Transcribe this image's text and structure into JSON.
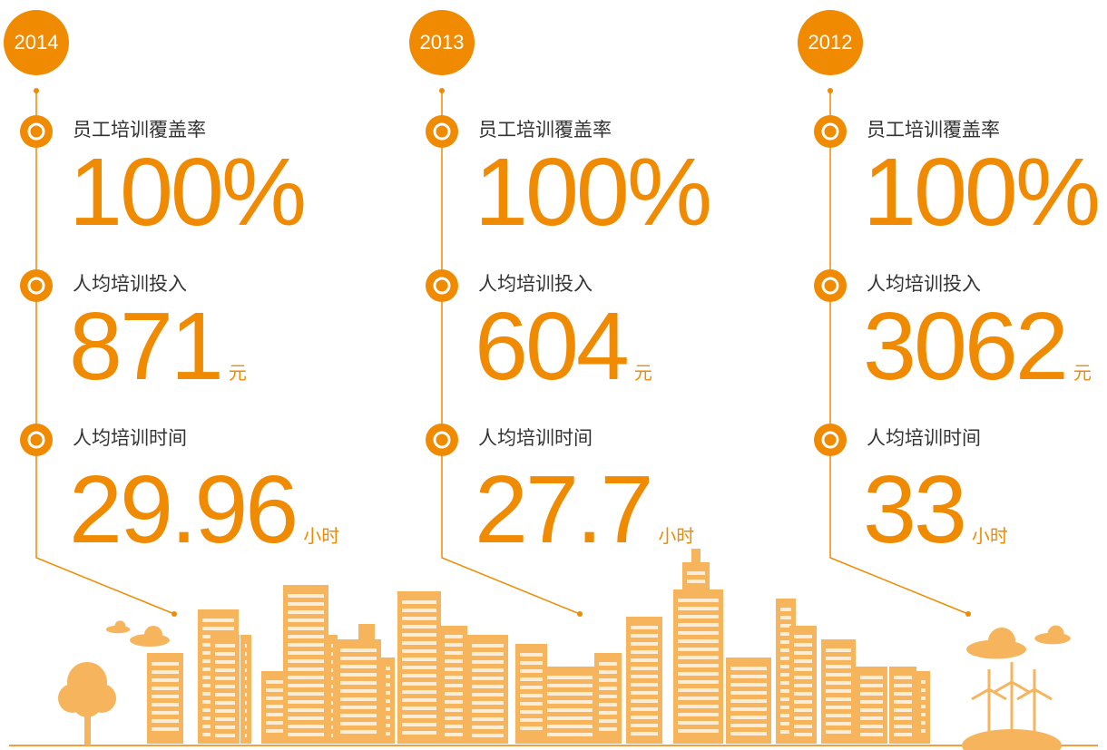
{
  "columns": [
    {
      "year": "2014",
      "items": [
        {
          "label": "员工培训覆盖率",
          "value": "100%"
        },
        {
          "label": "人均培训投入",
          "value": "871",
          "unit": "元"
        },
        {
          "label": "人均培训时间",
          "value": "29.96",
          "unit": "小时"
        }
      ]
    },
    {
      "year": "2013",
      "items": [
        {
          "label": "员工培训覆盖率",
          "value": "100%"
        },
        {
          "label": "人均培训投入",
          "value": "604",
          "unit": "元"
        },
        {
          "label": "人均培训时间",
          "value": "27.7",
          "unit": "小时"
        }
      ]
    },
    {
      "year": "2012",
      "items": [
        {
          "label": "员工培训覆盖率",
          "value": "100%"
        },
        {
          "label": "人均培训投入",
          "value": "3062",
          "unit": "元"
        },
        {
          "label": "人均培训时间",
          "value": "33",
          "unit": "小时"
        }
      ]
    }
  ]
}
